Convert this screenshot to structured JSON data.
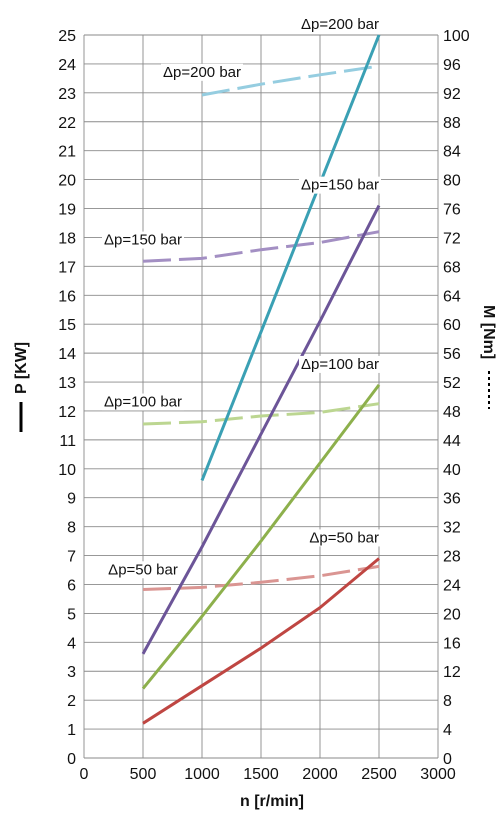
{
  "chart_data": {
    "type": "line",
    "x_axis": {
      "label": "n [r/min]",
      "range": [
        0,
        3000
      ],
      "ticks": [
        0,
        500,
        1000,
        1500,
        2000,
        2500,
        3000
      ]
    },
    "y_axis_left": {
      "label": "P [KW]",
      "range": [
        0,
        25
      ],
      "ticks": [
        0,
        1,
        2,
        3,
        4,
        5,
        6,
        7,
        8,
        9,
        10,
        11,
        12,
        13,
        14,
        15,
        16,
        17,
        18,
        19,
        20,
        21,
        22,
        23,
        24,
        25
      ]
    },
    "y_axis_right": {
      "label": "M [Nm]",
      "range": [
        0,
        100
      ],
      "ticks": [
        0,
        4,
        8,
        12,
        16,
        20,
        24,
        28,
        32,
        36,
        40,
        44,
        48,
        52,
        56,
        60,
        64,
        68,
        72,
        76,
        80,
        84,
        88,
        92,
        96,
        100
      ]
    },
    "grid": true,
    "series": [
      {
        "name": "Δp=200 bar",
        "quantity": "P",
        "axis": "left",
        "style": "solid",
        "color": "#3aa0b4",
        "x": [
          1000,
          2500
        ],
        "y": [
          9.6,
          25.0
        ]
      },
      {
        "name": "Δp=150 bar",
        "quantity": "P",
        "axis": "left",
        "style": "solid",
        "color": "#6c5598",
        "x": [
          500,
          1000,
          1500,
          2000,
          2500
        ],
        "y": [
          3.6,
          7.3,
          11.2,
          15.1,
          19.1
        ]
      },
      {
        "name": "Δp=100 bar",
        "quantity": "P",
        "axis": "left",
        "style": "solid",
        "color": "#8db04c",
        "x": [
          500,
          1000,
          1500,
          2000,
          2500
        ],
        "y": [
          2.4,
          4.9,
          7.5,
          10.2,
          12.9
        ]
      },
      {
        "name": "Δp=50 bar",
        "quantity": "P",
        "axis": "left",
        "style": "solid",
        "color": "#bf4642",
        "x": [
          500,
          1000,
          1500,
          2000,
          2500
        ],
        "y": [
          1.2,
          2.5,
          3.8,
          5.2,
          6.9
        ]
      },
      {
        "name": "Δp=200 bar",
        "quantity": "M",
        "axis": "right",
        "style": "dashed",
        "color": "#95cde0",
        "x": [
          1000,
          1500,
          2000,
          2500
        ],
        "y": [
          91.7,
          93.2,
          94.5,
          95.7
        ]
      },
      {
        "name": "Δp=150 bar",
        "quantity": "M",
        "axis": "right",
        "style": "dashed",
        "color": "#a38fc3",
        "x": [
          500,
          1000,
          1500,
          2000,
          2500
        ],
        "y": [
          68.7,
          69.1,
          70.3,
          71.3,
          72.8
        ]
      },
      {
        "name": "Δp=100 bar",
        "quantity": "M",
        "axis": "right",
        "style": "dashed",
        "color": "#bcd691",
        "x": [
          500,
          1000,
          1500,
          2000,
          2500
        ],
        "y": [
          46.2,
          46.5,
          47.3,
          47.8,
          49.0
        ]
      },
      {
        "name": "Δp=50 bar",
        "quantity": "M",
        "axis": "right",
        "style": "dashed",
        "color": "#da9592",
        "x": [
          500,
          1000,
          1500,
          2000,
          2500
        ],
        "y": [
          23.3,
          23.6,
          24.3,
          25.2,
          26.5
        ]
      }
    ],
    "annotations": [
      {
        "text": "Δp=200 bar",
        "x": 2500,
        "y": 25.0,
        "anchor": "end",
        "dy": -6
      },
      {
        "text": "Δp=200 bar",
        "x": 1000,
        "y": 23.0,
        "anchor": "middle",
        "dy": -16
      },
      {
        "text": "Δp=150 bar",
        "x": 2500,
        "y": 19.1,
        "anchor": "end",
        "dy": -16
      },
      {
        "text": "Δp=150 bar",
        "x": 500,
        "y": 17.2,
        "anchor": "middle",
        "dy": -16
      },
      {
        "text": "Δp=100 bar",
        "x": 2500,
        "y": 12.9,
        "anchor": "end",
        "dy": -16
      },
      {
        "text": "Δp=100 bar",
        "x": 500,
        "y": 11.6,
        "anchor": "middle",
        "dy": -16
      },
      {
        "text": "Δp=50 bar",
        "x": 2500,
        "y": 6.9,
        "anchor": "end",
        "dy": -16
      },
      {
        "text": "Δp=50 bar",
        "x": 500,
        "y": 5.8,
        "anchor": "middle",
        "dy": -16
      }
    ]
  }
}
